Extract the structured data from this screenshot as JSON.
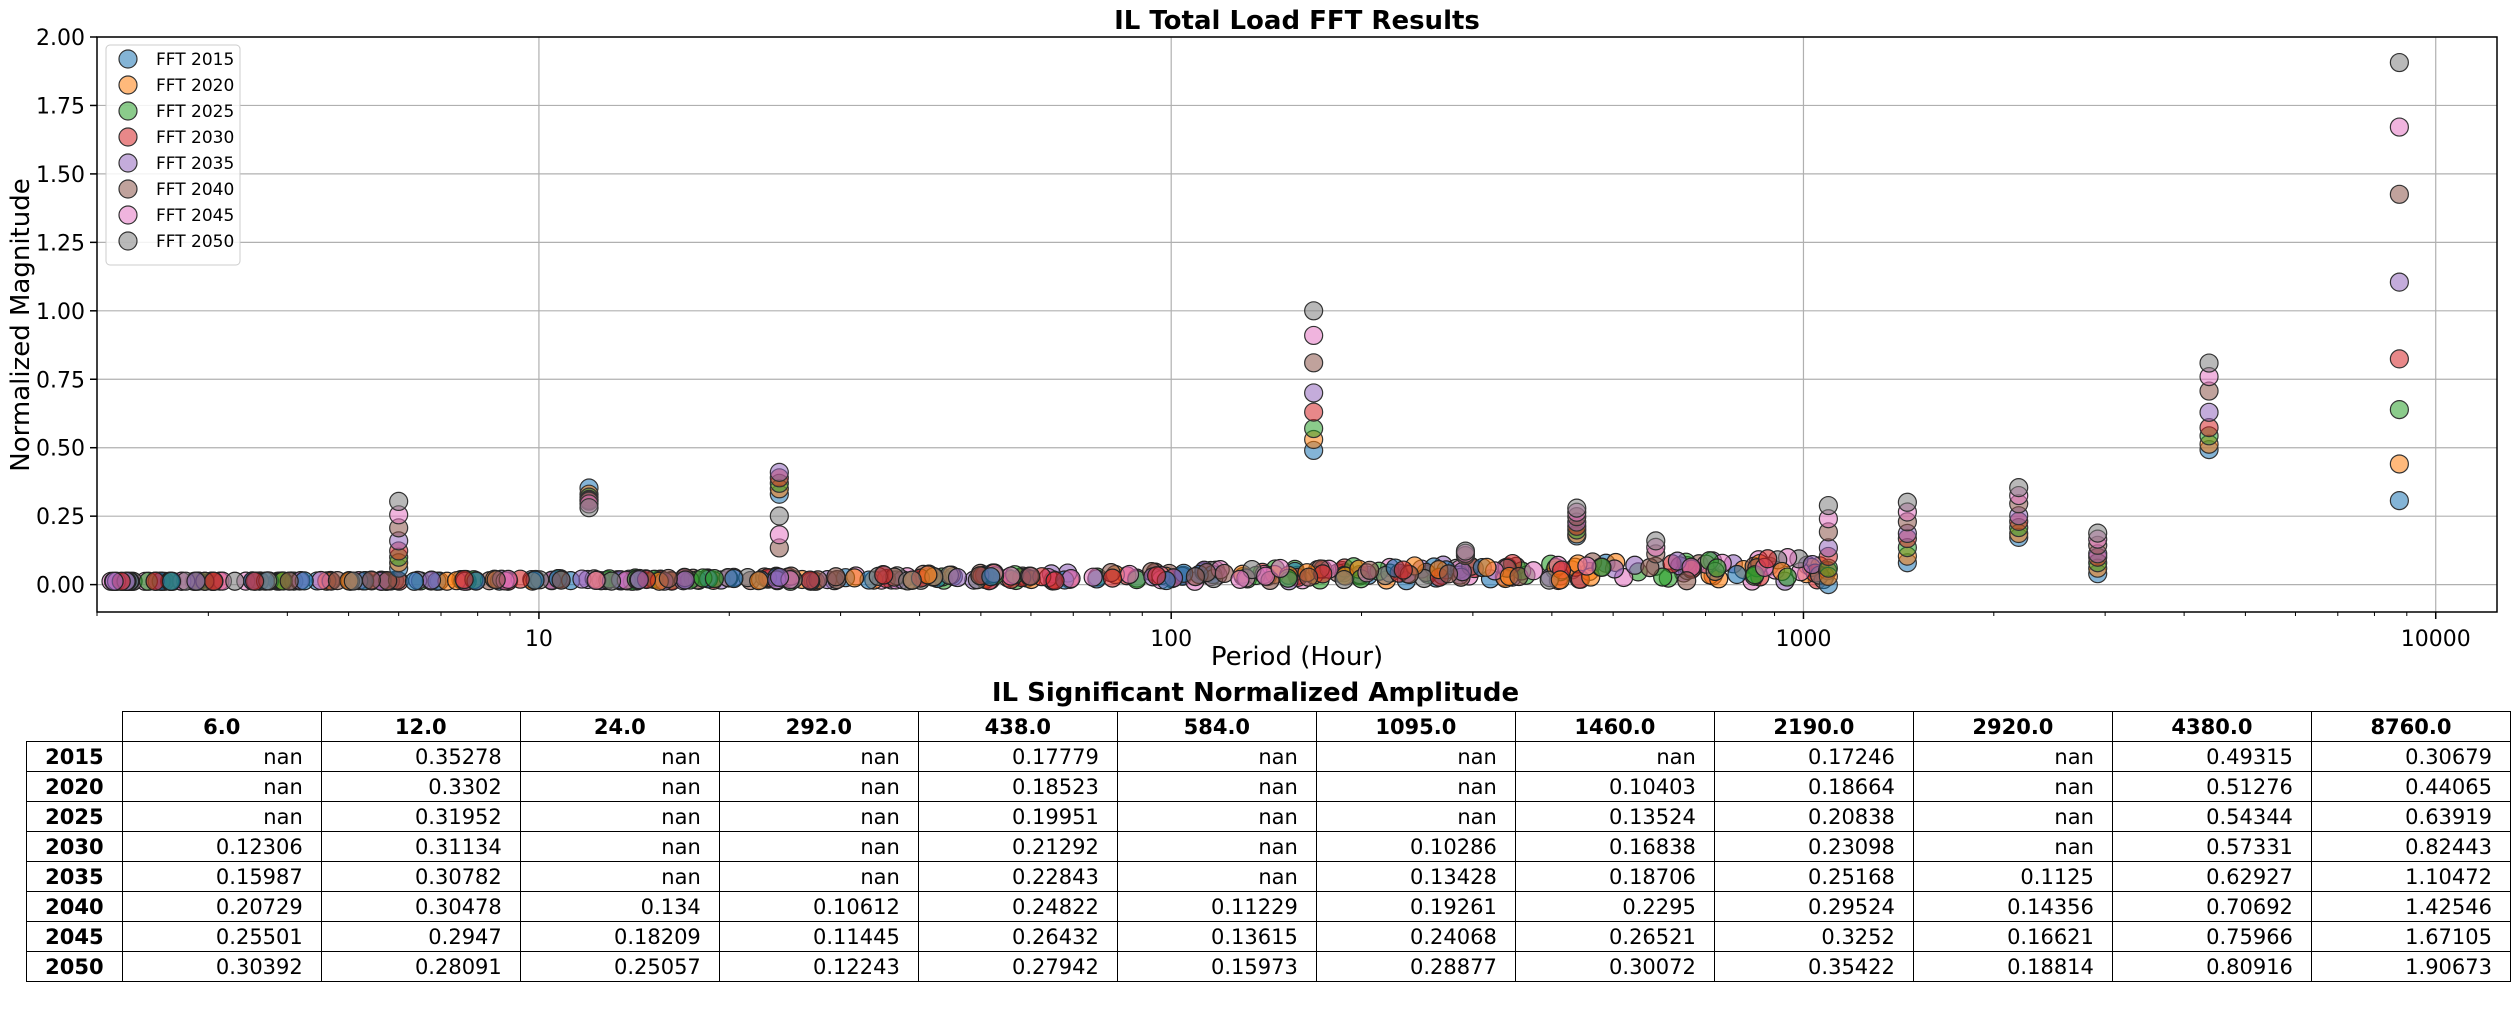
{
  "chart_data": [
    {
      "type": "scatter",
      "title": "IL Total Load FFT Results",
      "xlabel": "Period (Hour)",
      "ylabel": "Normalized Magnitude",
      "xscale": "log",
      "xlim": [
        2,
        12500
      ],
      "ylim": [
        -0.1,
        2.0
      ],
      "xticks": [
        10,
        100,
        1000,
        10000
      ],
      "xtick_labels": [
        "10",
        "100",
        "1000",
        "10000"
      ],
      "yticks": [
        0.0,
        0.25,
        0.5,
        0.75,
        1.0,
        1.25,
        1.5,
        1.75,
        2.0
      ],
      "ytick_labels": [
        "0.00",
        "0.25",
        "0.50",
        "0.75",
        "1.00",
        "1.25",
        "1.50",
        "1.75",
        "2.00"
      ],
      "grid": true,
      "legend_position": "top-left",
      "series": [
        {
          "name": "FFT 2015",
          "color": "#1f77b4",
          "x": [
            6,
            12,
            24,
            168,
            438,
            1095,
            1460,
            2190,
            2920,
            4380,
            8760
          ],
          "y": [
            0.06,
            0.35278,
            0.33,
            0.49,
            0.17779,
            0.0,
            0.08,
            0.17246,
            0.04,
            0.49315,
            0.30679
          ]
        },
        {
          "name": "FFT 2020",
          "color": "#ff7f0e",
          "x": [
            6,
            12,
            24,
            168,
            438,
            1095,
            1460,
            2190,
            2920,
            4380,
            8760
          ],
          "y": [
            0.08,
            0.3302,
            0.35,
            0.53,
            0.18523,
            0.03,
            0.10403,
            0.18664,
            0.06,
            0.51276,
            0.44065
          ]
        },
        {
          "name": "FFT 2025",
          "color": "#2ca02c",
          "x": [
            6,
            12,
            24,
            168,
            438,
            1095,
            1460,
            2190,
            2920,
            4380,
            8760
          ],
          "y": [
            0.1,
            0.31952,
            0.37,
            0.57,
            0.19951,
            0.06,
            0.13524,
            0.20838,
            0.08,
            0.54344,
            0.63919
          ]
        },
        {
          "name": "FFT 2030",
          "color": "#d62728",
          "x": [
            6,
            12,
            24,
            168,
            438,
            1095,
            1460,
            2190,
            2920,
            4380,
            8760
          ],
          "y": [
            0.12306,
            0.31134,
            0.39,
            0.63,
            0.21292,
            0.10286,
            0.16838,
            0.23098,
            0.1,
            0.57331,
            0.82443
          ]
        },
        {
          "name": "FFT 2035",
          "color": "#9467bd",
          "x": [
            6,
            12,
            24,
            168,
            438,
            1095,
            1460,
            2190,
            2920,
            4380,
            8760
          ],
          "y": [
            0.15987,
            0.30782,
            0.41,
            0.7,
            0.22843,
            0.13428,
            0.18706,
            0.25168,
            0.1125,
            0.62927,
            1.10472
          ]
        },
        {
          "name": "FFT 2040",
          "color": "#8c564b",
          "x": [
            6,
            12,
            24,
            168,
            292,
            438,
            584,
            1095,
            1460,
            2190,
            2920,
            4380,
            8760
          ],
          "y": [
            0.20729,
            0.30478,
            0.134,
            0.81,
            0.10612,
            0.24822,
            0.11229,
            0.19261,
            0.2295,
            0.29524,
            0.14356,
            0.70692,
            1.42546
          ]
        },
        {
          "name": "FFT 2045",
          "color": "#e377c2",
          "x": [
            6,
            12,
            24,
            168,
            292,
            438,
            584,
            1095,
            1460,
            2190,
            2920,
            4380,
            8760
          ],
          "y": [
            0.25501,
            0.2947,
            0.18209,
            0.91,
            0.11445,
            0.26432,
            0.13615,
            0.24068,
            0.26521,
            0.3252,
            0.16621,
            0.75966,
            1.67105
          ]
        },
        {
          "name": "FFT 2050",
          "color": "#7f7f7f",
          "x": [
            6,
            12,
            24,
            168,
            292,
            438,
            584,
            1095,
            1460,
            2190,
            2920,
            4380,
            8760
          ],
          "y": [
            0.30392,
            0.28091,
            0.25057,
            1.0,
            0.12243,
            0.27942,
            0.15973,
            0.28877,
            0.30072,
            0.35422,
            0.18814,
            0.80916,
            1.90673
          ]
        }
      ]
    },
    {
      "type": "table",
      "title": "IL Significant Normalized Amplitude",
      "columns": [
        "6.0",
        "12.0",
        "24.0",
        "292.0",
        "438.0",
        "584.0",
        "1095.0",
        "1460.0",
        "2190.0",
        "2920.0",
        "4380.0",
        "8760.0"
      ],
      "rows": [
        {
          "label": "2015",
          "values": [
            "nan",
            "0.35278",
            "nan",
            "nan",
            "0.17779",
            "nan",
            "nan",
            "nan",
            "0.17246",
            "nan",
            "0.49315",
            "0.30679"
          ]
        },
        {
          "label": "2020",
          "values": [
            "nan",
            "0.3302",
            "nan",
            "nan",
            "0.18523",
            "nan",
            "nan",
            "0.10403",
            "0.18664",
            "nan",
            "0.51276",
            "0.44065"
          ]
        },
        {
          "label": "2025",
          "values": [
            "nan",
            "0.31952",
            "nan",
            "nan",
            "0.19951",
            "nan",
            "nan",
            "0.13524",
            "0.20838",
            "nan",
            "0.54344",
            "0.63919"
          ]
        },
        {
          "label": "2030",
          "values": [
            "0.12306",
            "0.31134",
            "nan",
            "nan",
            "0.21292",
            "nan",
            "0.10286",
            "0.16838",
            "0.23098",
            "nan",
            "0.57331",
            "0.82443"
          ]
        },
        {
          "label": "2035",
          "values": [
            "0.15987",
            "0.30782",
            "nan",
            "nan",
            "0.22843",
            "nan",
            "0.13428",
            "0.18706",
            "0.25168",
            "0.1125",
            "0.62927",
            "1.10472"
          ]
        },
        {
          "label": "2040",
          "values": [
            "0.20729",
            "0.30478",
            "0.134",
            "0.10612",
            "0.24822",
            "0.11229",
            "0.19261",
            "0.2295",
            "0.29524",
            "0.14356",
            "0.70692",
            "1.42546"
          ]
        },
        {
          "label": "2045",
          "values": [
            "0.25501",
            "0.2947",
            "0.18209",
            "0.11445",
            "0.26432",
            "0.13615",
            "0.24068",
            "0.26521",
            "0.3252",
            "0.16621",
            "0.75966",
            "1.67105"
          ]
        },
        {
          "label": "2050",
          "values": [
            "0.30392",
            "0.28091",
            "0.25057",
            "0.12243",
            "0.27942",
            "0.15973",
            "0.28877",
            "0.30072",
            "0.35422",
            "0.18814",
            "0.80916",
            "1.90673"
          ]
        }
      ]
    }
  ]
}
